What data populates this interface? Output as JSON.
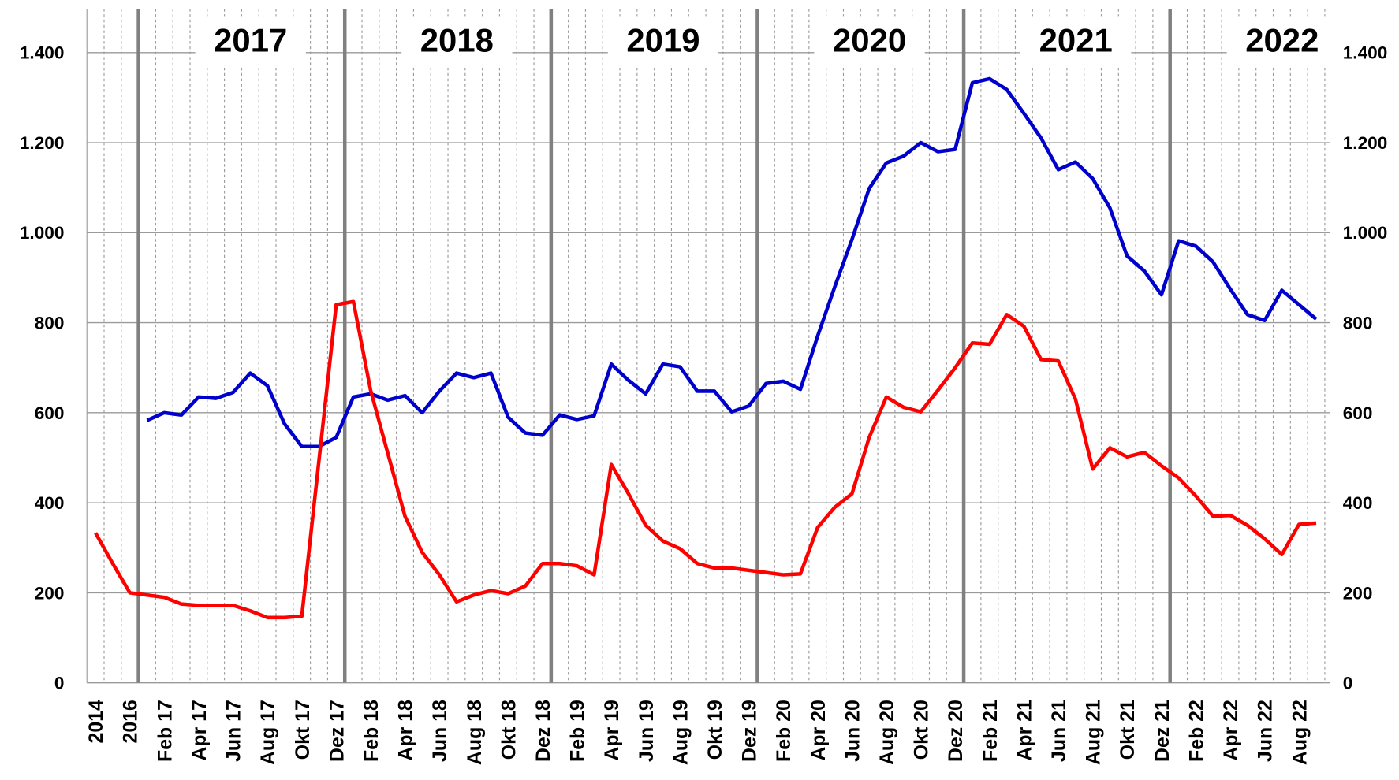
{
  "chart_data": {
    "type": "line",
    "categories": [
      "2014",
      null,
      "2016",
      null,
      "Feb 17",
      null,
      "Apr 17",
      null,
      "Jun 17",
      null,
      "Aug 17",
      null,
      "Okt 17",
      null,
      "Dez 17",
      null,
      "Feb 18",
      null,
      "Apr 18",
      null,
      "Jun 18",
      null,
      "Aug 18",
      null,
      "Okt 18",
      null,
      "Dez 18",
      null,
      "Feb 19",
      null,
      "Apr 19",
      null,
      "Jun 19",
      null,
      "Aug 19",
      null,
      "Okt 19",
      null,
      "Dez 19",
      null,
      "Feb 20",
      null,
      "Apr 20",
      null,
      "Jun 20",
      null,
      "Aug 20",
      null,
      "Okt 20",
      null,
      "Dez 20",
      null,
      "Feb 21",
      null,
      "Apr 21",
      null,
      "Jun 21",
      null,
      "Aug 21",
      null,
      "Okt 21",
      null,
      "Dez 21",
      null,
      "Feb 22",
      null,
      "Apr 22",
      null,
      "Jun 22",
      null,
      "Aug 22",
      null
    ],
    "series": [
      {
        "color": "#0000cc",
        "values": [
          null,
          null,
          null,
          583,
          600,
          595,
          635,
          632,
          645,
          688,
          660,
          575,
          525,
          525,
          545,
          635,
          642,
          628,
          638,
          600,
          648,
          688,
          678,
          688,
          590,
          555,
          550,
          595,
          585,
          593,
          708,
          672,
          642,
          708,
          702,
          648,
          648,
          602,
          615,
          665,
          670,
          652,
          770,
          880,
          985,
          1098,
          1155,
          1170,
          1200,
          1180,
          1185,
          1333,
          1342,
          1318,
          1265,
          1210,
          1140,
          1157,
          1120,
          1055,
          948,
          915,
          862,
          982,
          970,
          935,
          875,
          818,
          805,
          872,
          840,
          808
        ]
      },
      {
        "color": "#ff0000",
        "values": [
          333,
          265,
          200,
          195,
          190,
          175,
          172,
          172,
          172,
          160,
          145,
          145,
          148,
          495,
          840,
          847,
          650,
          510,
          370,
          290,
          240,
          180,
          195,
          205,
          198,
          215,
          265,
          265,
          260,
          240,
          485,
          420,
          350,
          315,
          298,
          265,
          255,
          255,
          250,
          245,
          240,
          242,
          345,
          390,
          420,
          545,
          635,
          612,
          602,
          650,
          700,
          755,
          752,
          818,
          792,
          718,
          715,
          630,
          475,
          522,
          502,
          512,
          482,
          455,
          415,
          370,
          372,
          350,
          320,
          285,
          352,
          355
        ]
      }
    ],
    "annotations": [
      "2017",
      "2018",
      "2019",
      "2020",
      "2021",
      "2022"
    ],
    "ylim": [
      0,
      1400
    ],
    "yticks": [
      0,
      200,
      400,
      600,
      800,
      {
        "value": 1000,
        "label": "1.000"
      },
      {
        "value": 1200,
        "label": "1.200"
      },
      {
        "value": 1400,
        "label": "1.400"
      }
    ],
    "y2lim": [
      0,
      1400
    ],
    "y2ticks": [
      0,
      200,
      400,
      600,
      800,
      {
        "value": 1000,
        "label": "1.000"
      },
      {
        "value": 1200,
        "label": "1.200"
      },
      {
        "value": 1400,
        "label": "1.400"
      }
    ],
    "grid": true
  }
}
